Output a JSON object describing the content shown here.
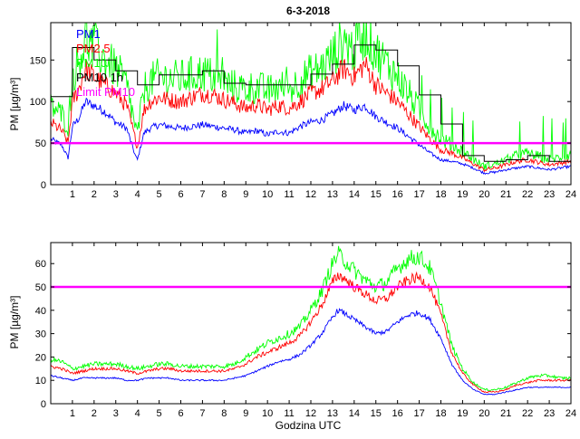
{
  "figure": {
    "title": "6-3-2018",
    "xlabel": "Godzina UTC"
  },
  "colors": {
    "pm1": "#0000ff",
    "pm25": "#ff0000",
    "pm10": "#00ff00",
    "pm10_1h": "#000000",
    "limit": "#ff00ff",
    "axes": "#000000"
  },
  "chart_data": [
    {
      "type": "line",
      "title": "6-3-2018",
      "xlabel": "",
      "ylabel": "PM [µg/m³]",
      "xlim": [
        0,
        24
      ],
      "ylim": [
        0,
        195
      ],
      "xticks": [
        1,
        2,
        3,
        4,
        5,
        6,
        7,
        8,
        9,
        10,
        11,
        12,
        13,
        14,
        15,
        16,
        17,
        18,
        19,
        20,
        21,
        22,
        23,
        24
      ],
      "yticks": [
        0,
        50,
        100,
        150
      ],
      "legend_position": "top-left",
      "legend": [
        "PM1",
        "PM2.5",
        "PM10",
        "PM10 1h",
        "Limit PM10"
      ],
      "limit": {
        "name": "Limit PM10",
        "value": 50
      },
      "series": [
        {
          "name": "PM1",
          "x": [
            0,
            0.5,
            0.8,
            1,
            1.3,
            1.6,
            2,
            2.5,
            3,
            3.5,
            3.9,
            4,
            4.3,
            4.6,
            5,
            5.5,
            6,
            6.5,
            7,
            7.5,
            8,
            8.5,
            9,
            9.5,
            10,
            10.5,
            11,
            11.5,
            12,
            12.5,
            13,
            13.5,
            14,
            14.5,
            15,
            15.5,
            16,
            16.5,
            17,
            17.5,
            18,
            18.5,
            19,
            19.5,
            20,
            20.5,
            21,
            21.5,
            22,
            22.5,
            23,
            23.5,
            24
          ],
          "values": [
            55,
            48,
            32,
            70,
            80,
            100,
            95,
            88,
            75,
            68,
            35,
            30,
            62,
            68,
            72,
            70,
            68,
            70,
            72,
            70,
            68,
            66,
            62,
            65,
            60,
            64,
            62,
            70,
            75,
            78,
            85,
            95,
            90,
            95,
            82,
            75,
            68,
            58,
            48,
            38,
            30,
            28,
            25,
            20,
            14,
            15,
            18,
            20,
            22,
            20,
            18,
            20,
            22
          ]
        },
        {
          "name": "PM2.5",
          "x": [
            0,
            0.5,
            0.8,
            1,
            1.3,
            1.6,
            2,
            2.5,
            3,
            3.5,
            3.9,
            4,
            4.3,
            4.6,
            5,
            5.5,
            6,
            6.5,
            7,
            7.5,
            8,
            8.5,
            9,
            9.5,
            10,
            10.5,
            11,
            11.5,
            12,
            12.5,
            13,
            13.5,
            14,
            14.5,
            15,
            15.5,
            16,
            16.5,
            17,
            17.5,
            18,
            18.5,
            19,
            19.5,
            20,
            20.5,
            21,
            21.5,
            22,
            22.5,
            23,
            23.5,
            24
          ],
          "values": [
            75,
            65,
            50,
            100,
            115,
            140,
            130,
            120,
            110,
            95,
            55,
            45,
            90,
            100,
            105,
            102,
            100,
            105,
            110,
            108,
            102,
            98,
            92,
            96,
            90,
            95,
            92,
            100,
            110,
            115,
            125,
            140,
            130,
            145,
            120,
            110,
            100,
            85,
            70,
            55,
            42,
            38,
            32,
            25,
            18,
            20,
            24,
            28,
            30,
            27,
            24,
            26,
            28
          ]
        },
        {
          "name": "PM10",
          "x": [
            0,
            0.5,
            0.8,
            1,
            1.3,
            1.6,
            2,
            2.5,
            3,
            3.5,
            3.9,
            4,
            4.3,
            4.6,
            5,
            5.5,
            6,
            6.5,
            7,
            7.5,
            8,
            8.5,
            9,
            9.5,
            10,
            10.5,
            11,
            11.5,
            12,
            12.5,
            13,
            13.5,
            14,
            14.5,
            15,
            15.5,
            16,
            16.5,
            17,
            17.5,
            18,
            18.5,
            19,
            19.5,
            20,
            20.5,
            21,
            21.5,
            22,
            22.5,
            23,
            23.5,
            24
          ],
          "values": [
            95,
            85,
            70,
            130,
            150,
            175,
            165,
            150,
            140,
            120,
            70,
            60,
            115,
            125,
            130,
            128,
            128,
            132,
            135,
            130,
            122,
            118,
            115,
            118,
            112,
            118,
            115,
            125,
            135,
            140,
            155,
            175,
            160,
            185,
            160,
            145,
            130,
            110,
            90,
            70,
            55,
            48,
            40,
            30,
            22,
            25,
            30,
            35,
            38,
            34,
            30,
            33,
            36
          ]
        },
        {
          "name": "PM10 1h",
          "x": [
            0,
            1,
            1,
            2,
            2,
            3,
            3,
            4,
            4,
            5,
            5,
            6,
            6,
            7,
            7,
            8,
            8,
            9,
            9,
            10,
            10,
            11,
            11,
            12,
            12,
            13,
            13,
            14,
            14,
            15,
            15,
            16,
            16,
            17,
            17,
            18,
            18,
            19,
            19,
            20,
            20,
            21,
            21,
            22,
            22,
            23,
            23,
            24
          ],
          "values": [
            106,
            106,
            165,
            165,
            150,
            150,
            137,
            137,
            120,
            120,
            132,
            132,
            132,
            132,
            137,
            137,
            122,
            122,
            120,
            120,
            120,
            120,
            120,
            120,
            133,
            133,
            145,
            145,
            168,
            168,
            162,
            162,
            143,
            143,
            108,
            108,
            73,
            73,
            35,
            35,
            28,
            28,
            30,
            30,
            35,
            35,
            28,
            28
          ]
        }
      ]
    },
    {
      "type": "line",
      "title": "",
      "xlabel": "Godzina UTC",
      "ylabel": "PM [µg/m³]",
      "xlim": [
        0,
        24
      ],
      "ylim": [
        0,
        69
      ],
      "xticks": [
        1,
        2,
        3,
        4,
        5,
        6,
        7,
        8,
        9,
        10,
        11,
        12,
        13,
        14,
        15,
        16,
        17,
        18,
        19,
        20,
        21,
        22,
        23,
        24
      ],
      "yticks": [
        0,
        10,
        20,
        30,
        40,
        50,
        60
      ],
      "limit": {
        "name": "Limit PM10",
        "value": 50
      },
      "series": [
        {
          "name": "PM1",
          "x": [
            0,
            0.5,
            1,
            1.5,
            2,
            2.5,
            3,
            3.5,
            4,
            4.5,
            5,
            5.5,
            6,
            6.5,
            7,
            7.5,
            8,
            8.5,
            9,
            9.5,
            10,
            10.5,
            11,
            11.5,
            12,
            12.5,
            13,
            13.25,
            13.5,
            14,
            14.5,
            15,
            15.5,
            16,
            16.5,
            17,
            17.5,
            18,
            18.5,
            19,
            19.5,
            20,
            20.5,
            21,
            21.5,
            22,
            22.5,
            23,
            23.5,
            24
          ],
          "values": [
            12,
            11,
            10,
            11,
            11,
            11,
            11,
            10,
            10,
            11,
            11,
            11,
            10,
            10,
            10,
            10,
            10,
            11,
            12,
            14,
            16,
            18,
            19,
            21,
            25,
            30,
            37,
            40,
            39,
            36,
            33,
            30,
            31,
            35,
            38,
            39,
            36,
            28,
            17,
            10,
            6,
            4,
            4,
            5,
            6,
            7,
            7,
            7,
            7,
            7
          ]
        },
        {
          "name": "PM2.5",
          "x": [
            0,
            0.5,
            1,
            1.5,
            2,
            2.5,
            3,
            3.5,
            4,
            4.5,
            5,
            5.5,
            6,
            6.5,
            7,
            7.5,
            8,
            8.5,
            9,
            9.5,
            10,
            10.5,
            11,
            11.5,
            12,
            12.5,
            13,
            13.25,
            13.5,
            14,
            14.5,
            15,
            15.5,
            16,
            16.5,
            17,
            17.5,
            18,
            18.5,
            19,
            19.5,
            20,
            20.5,
            21,
            21.5,
            22,
            22.5,
            23,
            23.5,
            24
          ],
          "values": [
            16,
            15,
            13,
            14,
            15,
            15,
            15,
            14,
            13,
            14,
            15,
            15,
            14,
            14,
            14,
            14,
            14,
            15,
            17,
            20,
            22,
            24,
            26,
            29,
            35,
            42,
            52,
            55,
            54,
            50,
            47,
            44,
            45,
            50,
            53,
            54,
            50,
            38,
            22,
            13,
            8,
            5,
            5,
            6,
            8,
            9,
            10,
            10,
            10,
            10
          ]
        },
        {
          "name": "PM10",
          "x": [
            0,
            0.5,
            1,
            1.5,
            2,
            2.5,
            3,
            3.5,
            4,
            4.5,
            5,
            5.5,
            6,
            6.5,
            7,
            7.5,
            8,
            8.5,
            9,
            9.5,
            10,
            10.5,
            11,
            11.5,
            12,
            12.5,
            13,
            13.25,
            13.5,
            14,
            14.5,
            15,
            15.5,
            16,
            16.5,
            17,
            17.5,
            18,
            18.5,
            19,
            19.5,
            20,
            20.5,
            21,
            21.5,
            22,
            22.5,
            23,
            23.5,
            24
          ],
          "values": [
            19,
            18,
            15,
            16,
            17,
            17,
            17,
            16,
            15,
            16,
            17,
            17,
            16,
            16,
            16,
            16,
            16,
            17,
            20,
            23,
            26,
            28,
            30,
            33,
            40,
            48,
            60,
            64,
            62,
            57,
            53,
            50,
            52,
            58,
            62,
            63,
            58,
            43,
            25,
            15,
            9,
            6,
            6,
            7,
            9,
            11,
            12,
            12,
            11,
            11
          ]
        }
      ]
    }
  ]
}
